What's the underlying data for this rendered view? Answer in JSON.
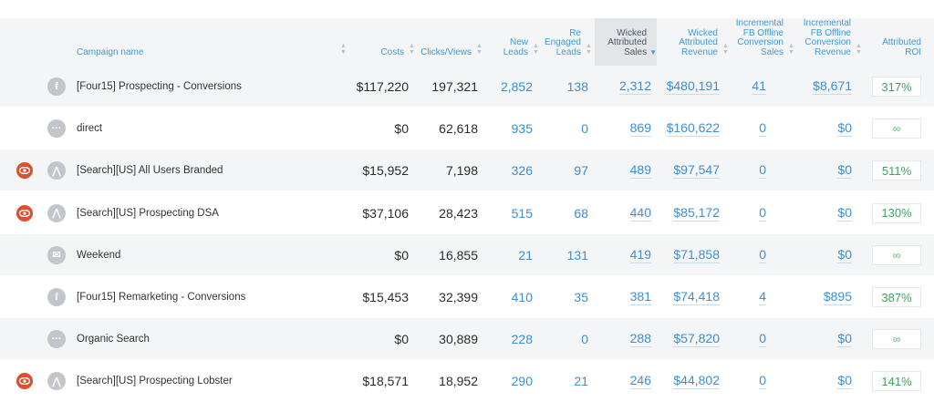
{
  "header": {
    "campaign": "Campaign name",
    "costs": "Costs",
    "clicks": "Clicks/Views",
    "new_leads": "New\nLeads",
    "re_engaged": "Re\nEngaged\nLeads",
    "wicked_sales": "Wicked\nAttributed\nSales",
    "wicked_revenue": "Wicked\nAttributed\nRevenue",
    "fb_sales": "Incremental\nFB Offline\nConversion\nSales",
    "fb_revenue": "Incremental\nFB Offline\nConversion\nRevenue",
    "roi": "Attributed\nROI"
  },
  "rows": [
    {
      "eye": false,
      "source": "facebook-icon",
      "name": "[Four15] Prospecting - Conversions",
      "costs": "$117,220",
      "clicks": "197,321",
      "new_leads": "2,852",
      "re_engaged": "138",
      "sales": "2,312",
      "revenue": "$480,191",
      "fb_sales": "41",
      "fb_revenue": "$8,671",
      "roi": "317%"
    },
    {
      "eye": false,
      "source": "more-icon",
      "name": "direct",
      "costs": "$0",
      "clicks": "62,618",
      "new_leads": "935",
      "re_engaged": "0",
      "sales": "869",
      "revenue": "$160,622",
      "fb_sales": "0",
      "fb_revenue": "$0",
      "roi": "∞"
    },
    {
      "eye": true,
      "source": "adwords-icon",
      "name": "[Search][US] All Users Branded",
      "costs": "$15,952",
      "clicks": "7,198",
      "new_leads": "326",
      "re_engaged": "97",
      "sales": "489",
      "revenue": "$97,547",
      "fb_sales": "0",
      "fb_revenue": "$0",
      "roi": "511%"
    },
    {
      "eye": true,
      "source": "adwords-icon",
      "name": "[Search][US] Prospecting DSA",
      "costs": "$37,106",
      "clicks": "28,423",
      "new_leads": "515",
      "re_engaged": "68",
      "sales": "440",
      "revenue": "$85,172",
      "fb_sales": "0",
      "fb_revenue": "$0",
      "roi": "130%"
    },
    {
      "eye": false,
      "source": "email-icon",
      "name": "Weekend",
      "costs": "$0",
      "clicks": "16,855",
      "new_leads": "21",
      "re_engaged": "131",
      "sales": "419",
      "revenue": "$71,858",
      "fb_sales": "0",
      "fb_revenue": "$0",
      "roi": "∞"
    },
    {
      "eye": false,
      "source": "facebook-icon",
      "name": "[Four15] Remarketing - Conversions",
      "costs": "$15,453",
      "clicks": "32,399",
      "new_leads": "410",
      "re_engaged": "35",
      "sales": "381",
      "revenue": "$74,418",
      "fb_sales": "4",
      "fb_revenue": "$895",
      "roi": "387%"
    },
    {
      "eye": false,
      "source": "more-icon",
      "name": "Organic Search",
      "costs": "$0",
      "clicks": "30,889",
      "new_leads": "228",
      "re_engaged": "0",
      "sales": "288",
      "revenue": "$57,820",
      "fb_sales": "0",
      "fb_revenue": "$0",
      "roi": "∞"
    },
    {
      "eye": true,
      "source": "adwords-icon",
      "name": "[Search][US] Prospecting Lobster",
      "costs": "$18,571",
      "clicks": "18,952",
      "new_leads": "290",
      "re_engaged": "21",
      "sales": "246",
      "revenue": "$44,802",
      "fb_sales": "0",
      "fb_revenue": "$0",
      "roi": "141%"
    }
  ]
}
